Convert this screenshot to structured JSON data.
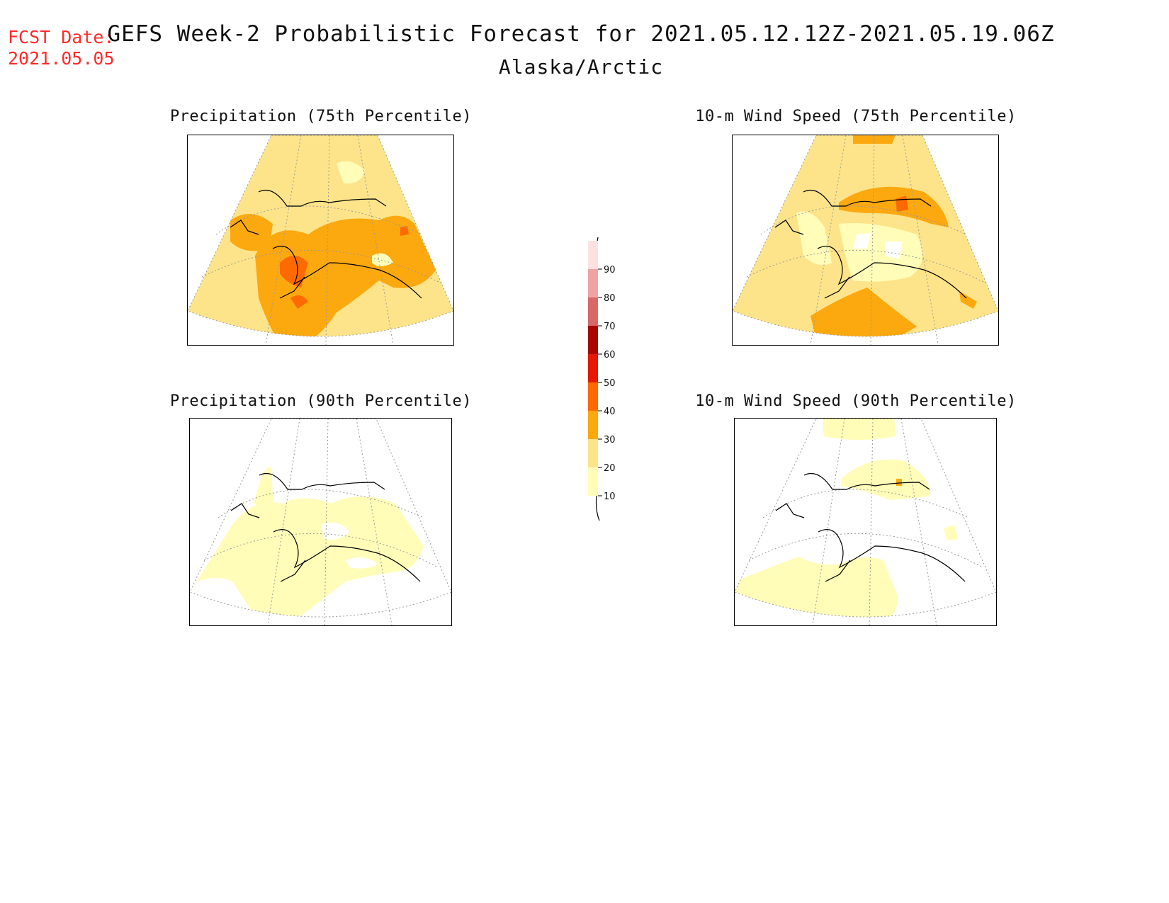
{
  "header": {
    "fcst_label": "FCST Date:",
    "fcst_date": "2021.05.05",
    "title": "GEFS Week-2 Probabilistic Forecast for 2021.05.12.12Z-2021.05.19.06Z",
    "subtitle": "Alaska/Arctic"
  },
  "panels": [
    {
      "id": "precip75",
      "title": "Precipitation (75th Percentile)"
    },
    {
      "id": "wind75",
      "title": "10-m Wind Speed (75th Percentile)"
    },
    {
      "id": "precip90",
      "title": "Precipitation (90th Percentile)"
    },
    {
      "id": "wind90",
      "title": "10-m Wind Speed (90th Percentile)"
    }
  ],
  "colorbar": {
    "levels": [
      "10",
      "20",
      "30",
      "40",
      "50",
      "60",
      "70",
      "80",
      "90"
    ],
    "colors": [
      "#fffdb8",
      "#fde48a",
      "#fca80f",
      "#fe6a02",
      "#e41803",
      "#a80600",
      "#d96868",
      "#f0a3a3",
      "#fde1e1"
    ]
  }
}
